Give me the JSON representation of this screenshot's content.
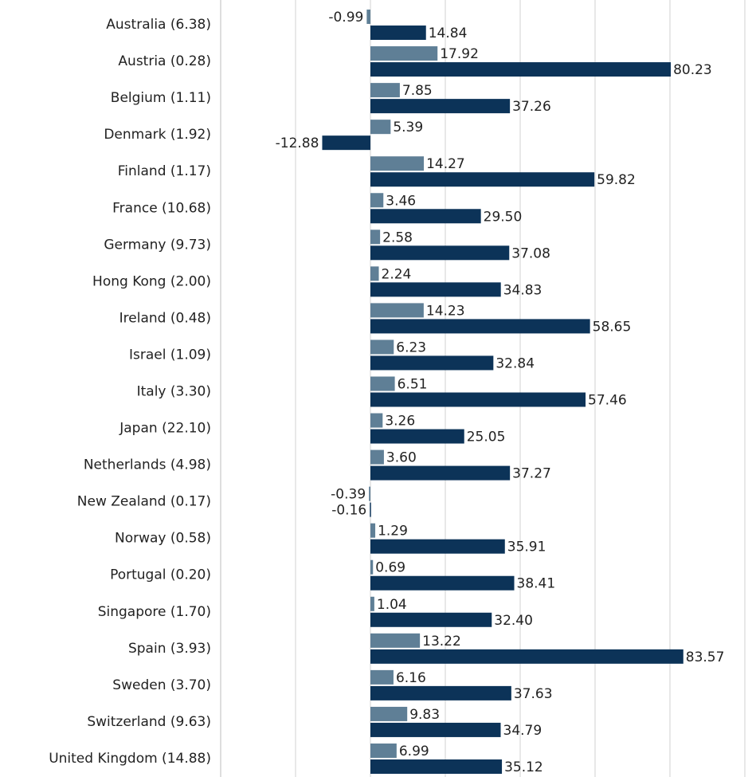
{
  "chart_data": {
    "type": "hbar",
    "categories": [
      "Australia (6.38)",
      "Austria (0.28)",
      "Belgium (1.11)",
      "Denmark (1.92)",
      "Finland (1.17)",
      "France (10.68)",
      "Germany (9.73)",
      "Hong Kong (2.00)",
      "Ireland (0.48)",
      "Israel (1.09)",
      "Italy (3.30)",
      "Japan (22.10)",
      "Netherlands (4.98)",
      "New Zealand (0.17)",
      "Norway (0.58)",
      "Portugal (0.20)",
      "Singapore (1.70)",
      "Spain (3.93)",
      "Sweden (3.70)",
      "Switzerland (9.63)",
      "United Kingdom (14.88)"
    ],
    "series": [
      {
        "color": "#5f7f96",
        "values": [
          -0.99,
          17.92,
          7.85,
          5.39,
          14.27,
          3.46,
          2.58,
          2.24,
          14.23,
          6.23,
          6.51,
          3.26,
          3.6,
          -0.39,
          1.29,
          0.69,
          1.04,
          13.22,
          6.16,
          9.83,
          6.99
        ],
        "value_labels": [
          "-0.99",
          "17.92",
          "7.85",
          "5.39",
          "14.27",
          "3.46",
          "2.58",
          "2.24",
          "14.23",
          "6.23",
          "6.51",
          "3.26",
          "3.60",
          "-0.39",
          "1.29",
          "0.69",
          "1.04",
          "13.22",
          "6.16",
          "9.83",
          "6.99"
        ]
      },
      {
        "color": "#0c3358",
        "values": [
          14.84,
          80.23,
          37.26,
          -12.88,
          59.82,
          29.5,
          37.08,
          34.83,
          58.65,
          32.84,
          57.46,
          25.05,
          37.27,
          -0.16,
          35.91,
          38.41,
          32.4,
          83.57,
          37.63,
          34.79,
          35.12
        ],
        "value_labels": [
          "14.84",
          "80.23",
          "37.26",
          "-12.88",
          "59.82",
          "29.50",
          "37.08",
          "34.83",
          "58.65",
          "32.84",
          "57.46",
          "25.05",
          "37.27",
          "-0.16",
          "35.91",
          "38.41",
          "32.40",
          "83.57",
          "37.63",
          "34.79",
          "35.12"
        ]
      }
    ],
    "xlim": [
      -40,
      100
    ],
    "xticks": [
      -40,
      -20,
      0,
      20,
      40,
      60,
      80,
      100
    ],
    "grid": true
  }
}
